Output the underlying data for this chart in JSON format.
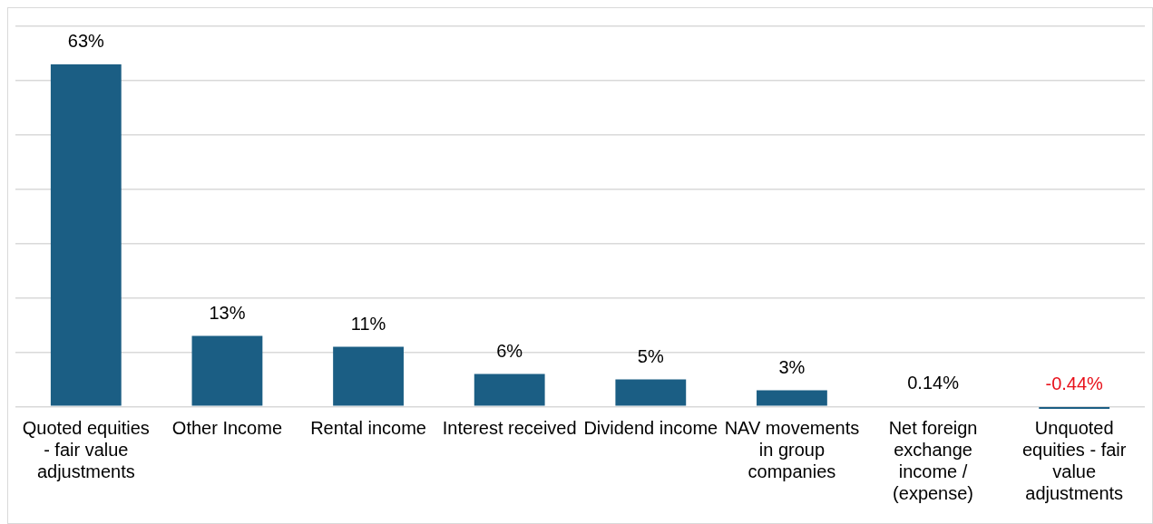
{
  "chart_data": {
    "type": "bar",
    "categories": [
      "Quoted equities - fair value adjustments",
      "Other Income",
      "Rental income",
      "Interest received",
      "Dividend income",
      "NAV movements in group companies",
      "Net foreign exchange income / (expense)",
      "Unquoted equities - fair value adjustments"
    ],
    "values": [
      63,
      13,
      11,
      6,
      5,
      3,
      0.14,
      -0.44
    ],
    "value_labels": [
      "63%",
      "13%",
      "11%",
      "6%",
      "5%",
      "3%",
      "0.14%",
      "-0.44%"
    ],
    "color": "#1b5e84",
    "yticks": [
      {
        "value": 0,
        "label": null
      },
      {
        "value": 10,
        "label": null
      },
      {
        "value": 20,
        "label": null
      },
      {
        "value": 30,
        "label": null
      },
      {
        "value": 40,
        "label": null
      },
      {
        "value": 50,
        "label": null
      },
      {
        "value": 60,
        "label": null
      },
      {
        "value": 70,
        "label": null
      }
    ],
    "grid": "y",
    "tick_labels": "x",
    "legend": false
  }
}
